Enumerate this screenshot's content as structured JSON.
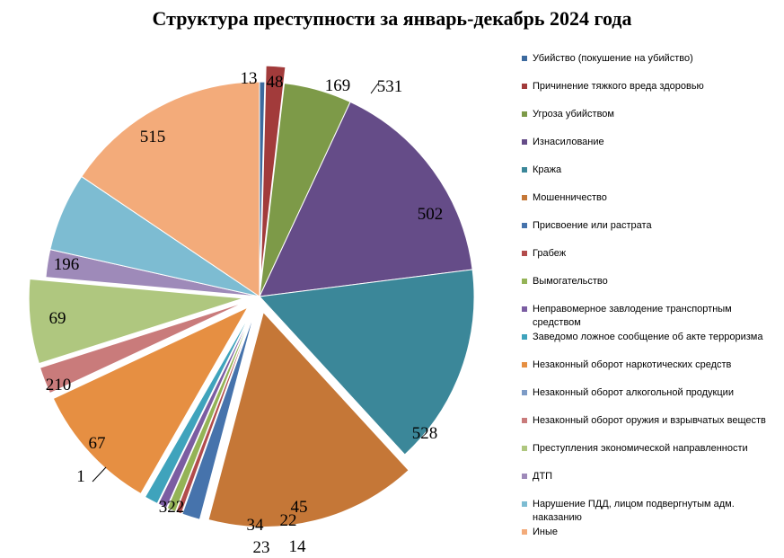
{
  "chart_data": {
    "type": "pie",
    "title": "Структура преступности за январь-декабрь 2024 года",
    "legend_position": "right",
    "slices": [
      {
        "label": "Убийство (покушение на убийство)",
        "value": 13,
        "color": "#3C6A9E",
        "exploded": false
      },
      {
        "label": "Причинение тяжкого вреда здоровью",
        "value": 48,
        "color": "#A23B3B",
        "exploded": true
      },
      {
        "label": "Угроза убийством",
        "value": 169,
        "color": "#7D9A48",
        "exploded": false
      },
      {
        "label": "Изнасилование",
        "value": 531,
        "color": "#654C88",
        "exploded": false
      },
      {
        "label": "Кража",
        "value": 502,
        "color": "#3B8799",
        "exploded": false
      },
      {
        "label": "Мошенничество",
        "value": 528,
        "color": "#C57737",
        "exploded": true
      },
      {
        "label": "Присвоение или растрата",
        "value": 45,
        "color": "#4673AC",
        "exploded": true
      },
      {
        "label": "Грабеж",
        "value": 14,
        "color": "#B24C4C",
        "exploded": true
      },
      {
        "label": "Вымогательство",
        "value": 22,
        "color": "#94B356",
        "exploded": true
      },
      {
        "label": "Неправомерное завлодение транспортным средством",
        "value": 23,
        "color": "#7B5DA2",
        "exploded": true
      },
      {
        "label": "Заведомо ложное сообщение об акте терроризма",
        "value": 34,
        "color": "#3FA3BC",
        "exploded": true
      },
      {
        "label": "Незаконный оборот наркотических средств",
        "value": 322,
        "color": "#E68F42",
        "exploded": true
      },
      {
        "label": "Незаконный оборот алкогольной продукции",
        "value": 1,
        "color": "#7D9BC6",
        "exploded": true
      },
      {
        "label": "Незаконный оборот оружия и взрывчатых веществ",
        "value": 67,
        "color": "#C97B7B",
        "exploded": true
      },
      {
        "label": "Преступления экономической направленности",
        "value": 210,
        "color": "#AFC77F",
        "exploded": true
      },
      {
        "label": "ДТП",
        "value": 69,
        "color": "#9E8AB9",
        "exploded": false
      },
      {
        "label": "Нарушение ПДД, лицом подвергнутым адм. наказанию",
        "value": 196,
        "color": "#7DBCD2",
        "exploded": false
      },
      {
        "label": "Иные",
        "value": 515,
        "color": "#F3AB7A",
        "exploded": false
      }
    ]
  }
}
